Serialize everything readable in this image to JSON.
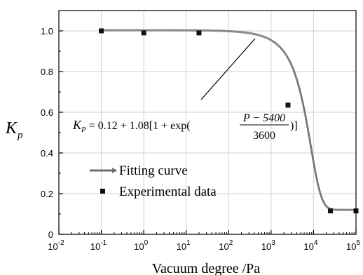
{
  "chart_data": {
    "type": "scatter",
    "xscale": "log",
    "xlim": [
      0.01,
      100000
    ],
    "ylim": [
      0,
      1.1
    ],
    "grid": true,
    "xlabel": "Vacuum degree /Pa",
    "ylabel": {
      "main": "K",
      "sub": "p"
    },
    "x_ticks": [
      {
        "value": 0.01,
        "base": "10",
        "exp": "-2"
      },
      {
        "value": 0.1,
        "base": "10",
        "exp": "-1"
      },
      {
        "value": 1,
        "base": "10",
        "exp": "0"
      },
      {
        "value": 10,
        "base": "10",
        "exp": "1"
      },
      {
        "value": 100,
        "base": "10",
        "exp": "2"
      },
      {
        "value": 1000,
        "base": "10",
        "exp": "3"
      },
      {
        "value": 10000,
        "base": "10",
        "exp": "4"
      },
      {
        "value": 100000,
        "base": "10",
        "exp": "5"
      }
    ],
    "y_ticks": [
      {
        "value": 0,
        "label": "0"
      },
      {
        "value": 0.2,
        "label": "0.2"
      },
      {
        "value": 0.4,
        "label": "0.4"
      },
      {
        "value": 0.6,
        "label": "0.6"
      },
      {
        "value": 0.8,
        "label": "0.8"
      },
      {
        "value": 1.0,
        "label": "1.0"
      }
    ],
    "series": [
      {
        "name": "Experimental data",
        "type": "scatter",
        "marker": "square",
        "color": "#111111",
        "points": [
          {
            "x": 0.1,
            "y": 1.0
          },
          {
            "x": 1,
            "y": 0.99
          },
          {
            "x": 20,
            "y": 0.99
          },
          {
            "x": 2500,
            "y": 0.635
          },
          {
            "x": 25000,
            "y": 0.115
          },
          {
            "x": 100000,
            "y": 0.115
          }
        ]
      },
      {
        "name": "Fitting curve",
        "type": "line",
        "color": "#6f6f6f",
        "formula": {
          "a": 0.12,
          "b": 1.08,
          "c": 5400,
          "d": 3600
        }
      }
    ],
    "equation": {
      "lhs_main": "K",
      "lhs_sub": "P",
      "prefix": " = 0.12 + 1.08[1 + exp(",
      "numerator": "P − 5400",
      "denominator": "3600",
      "suffix": ")]"
    }
  }
}
